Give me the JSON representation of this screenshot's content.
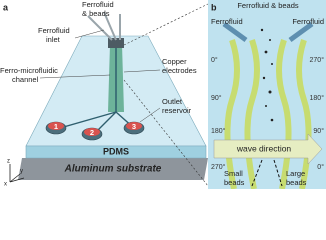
{
  "panel_a": {
    "label": "a",
    "ferrofluid_beads": [
      "Ferrofluid",
      "& beads"
    ],
    "inlet": [
      "Ferrofluid",
      "inlet"
    ],
    "channel": [
      "Ferro-microfluidic",
      "channel"
    ],
    "electrodes": [
      "Copper",
      "electrodes"
    ],
    "reservoir": [
      "Outlet",
      "reservoir"
    ],
    "outlets": [
      "1",
      "2",
      "3"
    ],
    "pdms": "PDMS",
    "substrate": "Aluminum substrate",
    "axes": [
      "z",
      "y",
      "x"
    ]
  },
  "panel_b": {
    "label": "b",
    "ferrofluid_beads": "Ferrofluid & beads",
    "ferrofluid_left": "Ferrofluid",
    "ferrofluid_right": "Ferrofluid",
    "angles_left": [
      "0°",
      "90°",
      "180°",
      "270°"
    ],
    "angles_right": [
      "270°",
      "180°",
      "90°",
      "0°"
    ],
    "wave_direction": "wave direction",
    "small_beads": [
      "Small",
      "beads"
    ],
    "large_beads": [
      "Large",
      "beads"
    ]
  }
}
